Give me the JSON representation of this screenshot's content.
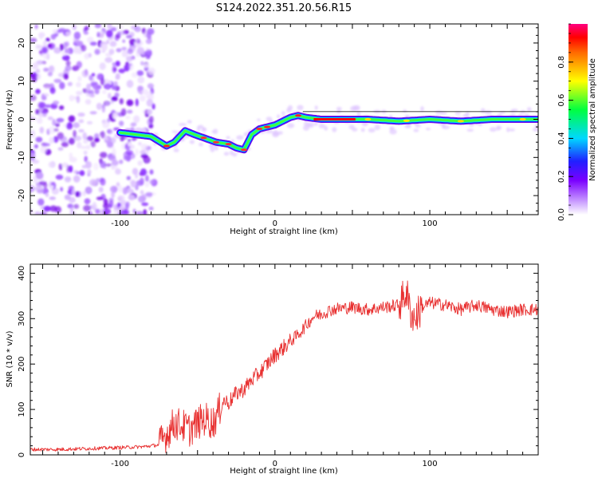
{
  "figure": {
    "title": "S124.2022.351.20.56.R15"
  },
  "chart_data": [
    {
      "type": "heatmap",
      "xlabel": "Height of straight line (km)",
      "ylabel": "Frequency (Hz)",
      "xlim": [
        -158,
        170
      ],
      "ylim": [
        -25,
        25
      ],
      "x_ticks": [
        -100,
        0,
        100
      ],
      "y_ticks": [
        -20,
        -10,
        0,
        10,
        20
      ],
      "colorbar": {
        "label": "Normalized spectral amplitude",
        "range": [
          0.0,
          1.0
        ],
        "ticks": [
          0.0,
          0.2,
          0.4,
          0.6,
          0.8
        ],
        "colormap": "rainbow (white-violet-blue-cyan-green-yellow-red-magenta)"
      },
      "ridge": {
        "x": [
          -100,
          -90,
          -80,
          -70,
          -65,
          -58,
          -52,
          -45,
          -38,
          -30,
          -25,
          -20,
          -15,
          -10,
          0,
          10,
          15,
          20,
          30,
          40,
          50,
          60,
          80,
          100,
          120,
          140,
          160,
          170
        ],
        "y": [
          -3.5,
          -4,
          -4.5,
          -7,
          -6,
          -3,
          -4,
          -5,
          -6,
          -6.5,
          -7.5,
          -8,
          -4,
          -2.5,
          -1.5,
          0.5,
          1,
          0.5,
          0,
          0,
          0,
          0,
          -0.5,
          0,
          -0.5,
          0,
          0,
          0
        ]
      },
      "noise_region_x": [
        -158,
        -78
      ]
    },
    {
      "type": "line",
      "xlabel": "Height of straight line (km)",
      "ylabel": "SNR (10 * v/v)",
      "xlim": [
        -158,
        170
      ],
      "ylim": [
        0,
        420
      ],
      "x_ticks": [
        -100,
        0,
        100
      ],
      "y_ticks": [
        0,
        100,
        200,
        300,
        400
      ],
      "color": "#e83030",
      "series": [
        {
          "x": [
            -158,
            -140,
            -120,
            -100,
            -85,
            -75,
            -70,
            -65,
            -60,
            -55,
            -50,
            -45,
            -40,
            -37,
            -33,
            -30,
            -25,
            -20,
            -15,
            -10,
            -5,
            0,
            5,
            10,
            15,
            20,
            25,
            30,
            35,
            40,
            50,
            60,
            70,
            80,
            85,
            87,
            90,
            95,
            100,
            110,
            120,
            130,
            140,
            150,
            160,
            170
          ],
          "values": [
            12,
            12,
            14,
            16,
            18,
            22,
            45,
            70,
            65,
            55,
            70,
            80,
            70,
            90,
            120,
            115,
            135,
            145,
            165,
            180,
            200,
            220,
            235,
            250,
            265,
            285,
            305,
            310,
            318,
            322,
            325,
            320,
            325,
            330,
            360,
            320,
            300,
            325,
            335,
            330,
            320,
            330,
            320,
            315,
            320,
            320
          ]
        }
      ]
    }
  ]
}
